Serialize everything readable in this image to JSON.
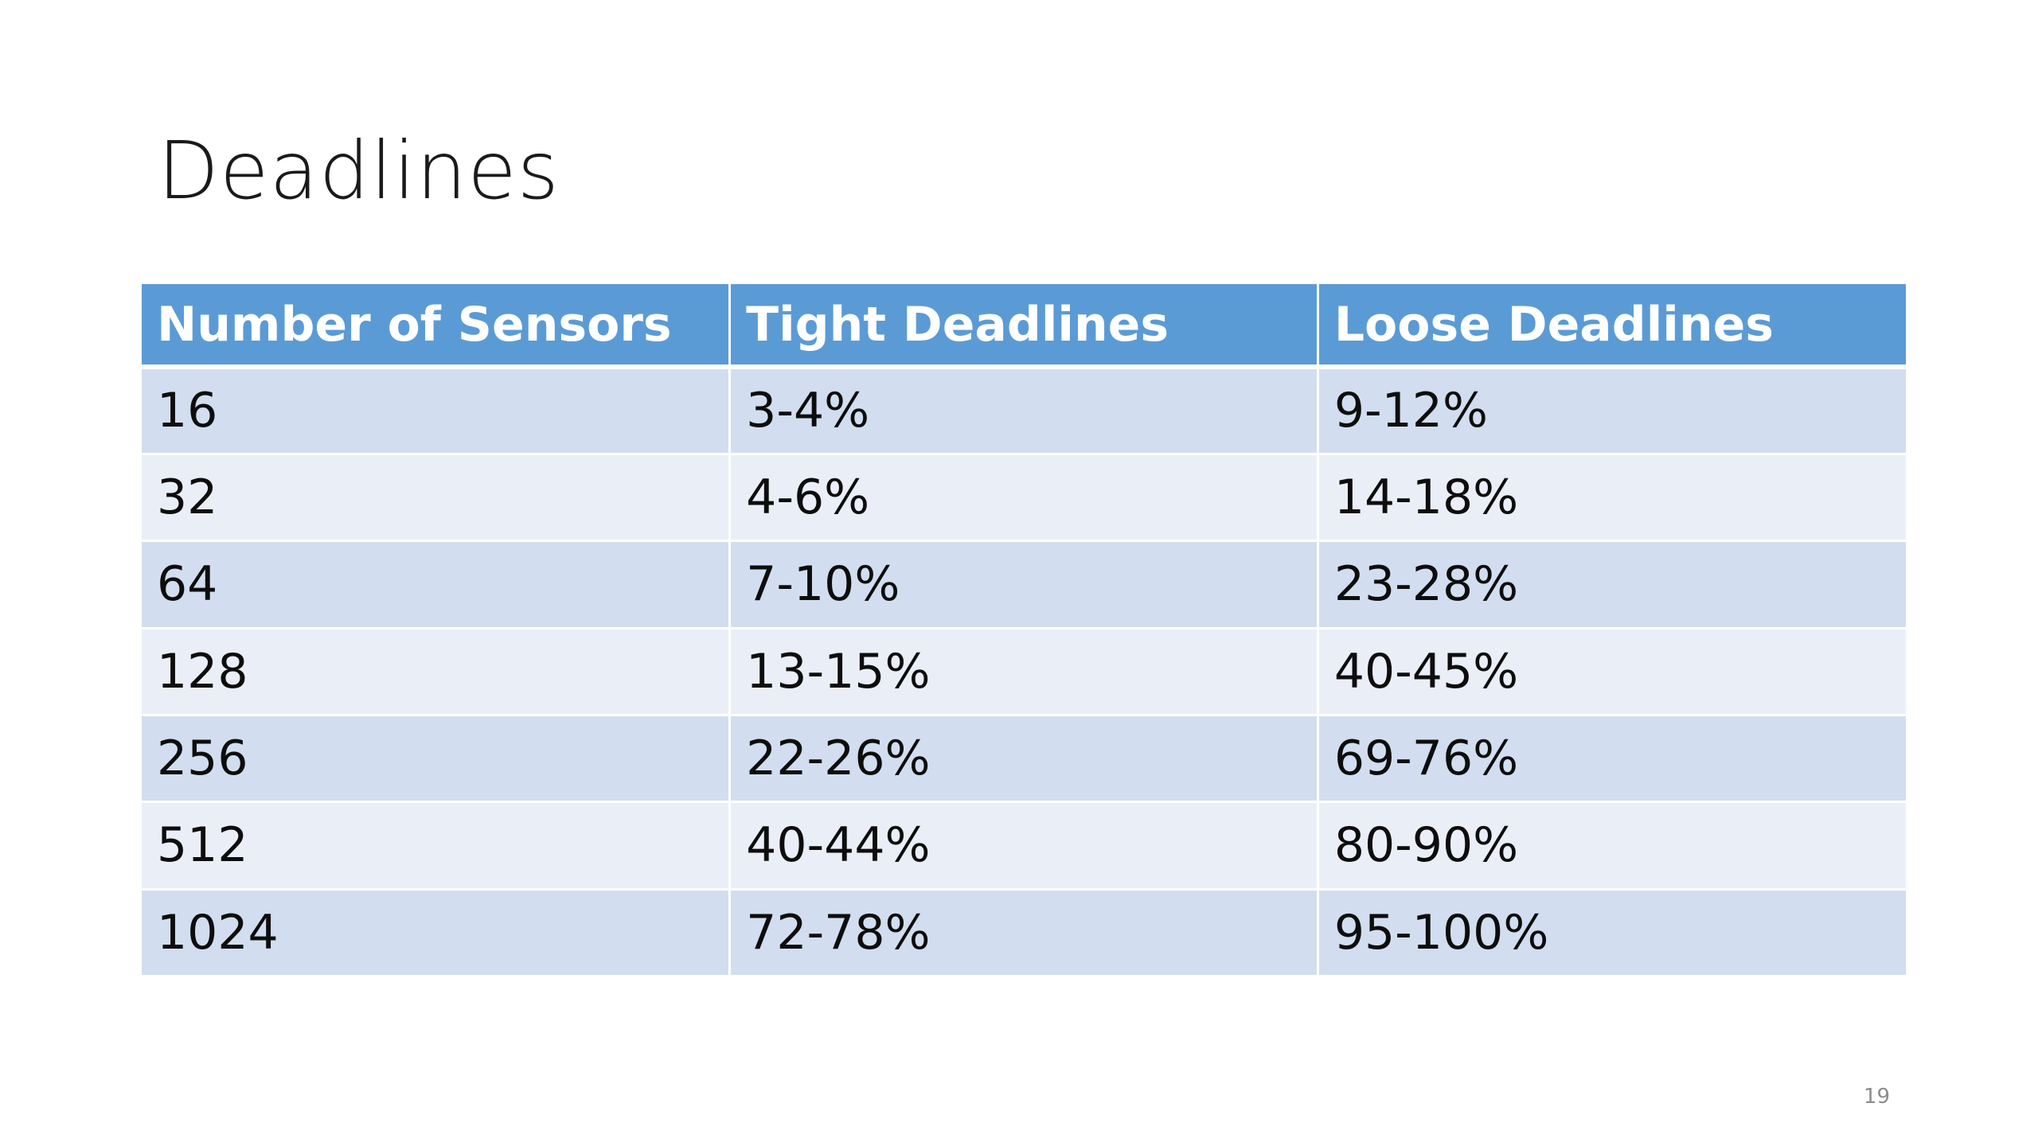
{
  "slide": {
    "title": "Deadlines",
    "page_number": "19"
  },
  "table": {
    "headers": [
      "Number of Sensors",
      "Tight Deadlines",
      "Loose Deadlines"
    ],
    "rows": [
      [
        "16",
        "3-4%",
        "9-12%"
      ],
      [
        "32",
        "4-6%",
        "14-18%"
      ],
      [
        "64",
        "7-10%",
        "23-28%"
      ],
      [
        "128",
        "13-15%",
        "40-45%"
      ],
      [
        "256",
        "22-26%",
        "69-76%"
      ],
      [
        "512",
        "40-44%",
        "80-90%"
      ],
      [
        "1024",
        "72-78%",
        "95-100%"
      ]
    ]
  },
  "colors": {
    "header_background": "#5b9bd5",
    "row_band_dark": "#d2deef",
    "row_band_light": "#eaeff7"
  }
}
